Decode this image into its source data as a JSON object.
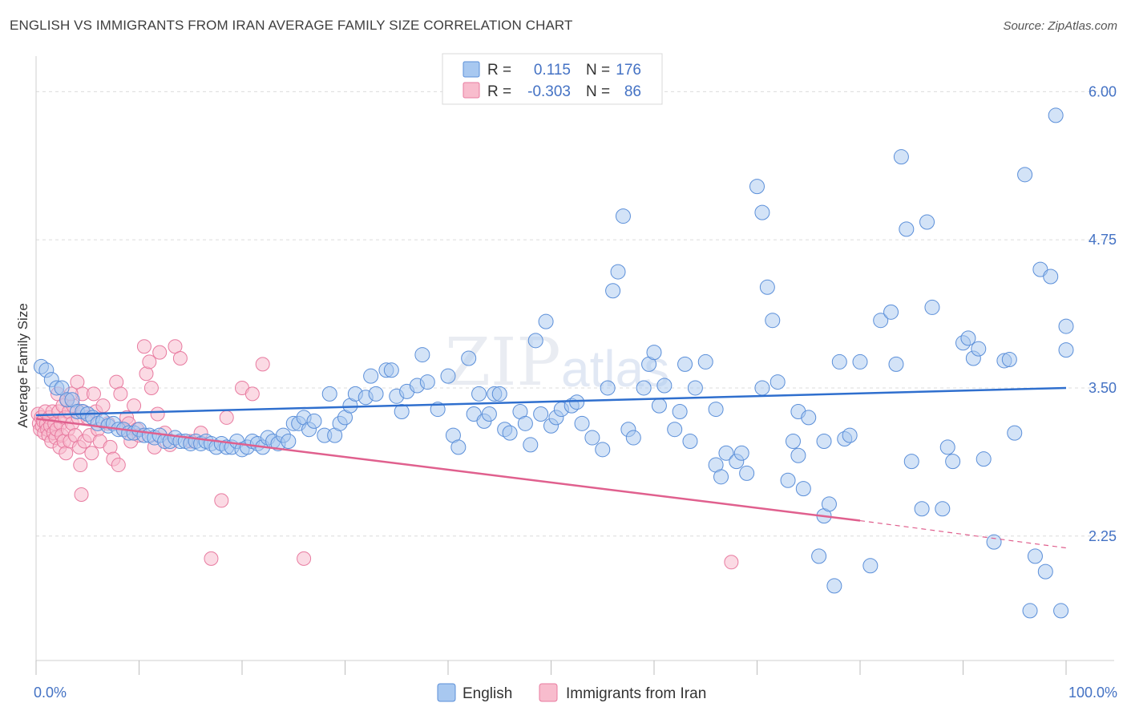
{
  "title": "ENGLISH VS IMMIGRANTS FROM IRAN AVERAGE FAMILY SIZE CORRELATION CHART",
  "source": "Source: ZipAtlas.com",
  "watermark": {
    "zip": "ZIP",
    "atlas": "atlas"
  },
  "legend_box": {
    "rows": [
      {
        "r_label": "R =",
        "r_value": "0.115",
        "n_label": "N =",
        "n_value": "176",
        "color": "#a8c8f0",
        "stroke": "#5b8fd9"
      },
      {
        "r_label": "R =",
        "r_value": "-0.303",
        "n_label": "N =",
        "n_value": "86",
        "color": "#f8bccd",
        "stroke": "#e87ba0"
      }
    ]
  },
  "bottom_legend": {
    "english": "English",
    "iran": "Immigrants from Iran"
  },
  "chart_data": {
    "type": "scatter",
    "title": "ENGLISH VS IMMIGRANTS FROM IRAN AVERAGE FAMILY SIZE CORRELATION CHART",
    "xlabel": "",
    "ylabel": "Average Family Size",
    "xlim": [
      0,
      100
    ],
    "ylim": [
      1.2,
      6.3
    ],
    "x_tick_labels": [
      "0.0%",
      "100.0%"
    ],
    "y_ticks": [
      2.25,
      3.5,
      4.75,
      6.0
    ],
    "y_tick_labels": [
      "2.25",
      "3.50",
      "4.75",
      "6.00"
    ],
    "grid": true,
    "colors": {
      "english_fill": "#a8c8f0",
      "english_stroke": "#5b8fd9",
      "english_line": "#2f6fce",
      "iran_fill": "#f8bccd",
      "iran_stroke": "#e87ba0",
      "iran_line": "#e0608e"
    },
    "series": [
      {
        "name": "English",
        "trend": {
          "x": [
            0,
            100
          ],
          "y": [
            3.27,
            3.5
          ]
        },
        "points": [
          [
            0.5,
            3.68
          ],
          [
            1,
            3.65
          ],
          [
            1.5,
            3.57
          ],
          [
            2,
            3.5
          ],
          [
            2.5,
            3.5
          ],
          [
            3,
            3.4
          ],
          [
            3.5,
            3.4
          ],
          [
            4,
            3.3
          ],
          [
            4.5,
            3.3
          ],
          [
            5,
            3.28
          ],
          [
            5.5,
            3.25
          ],
          [
            6,
            3.2
          ],
          [
            6.5,
            3.22
          ],
          [
            7,
            3.18
          ],
          [
            7.5,
            3.2
          ],
          [
            8,
            3.15
          ],
          [
            8.5,
            3.15
          ],
          [
            9,
            3.12
          ],
          [
            9.5,
            3.12
          ],
          [
            10,
            3.15
          ],
          [
            10.5,
            3.1
          ],
          [
            11,
            3.1
          ],
          [
            11.5,
            3.08
          ],
          [
            12,
            3.1
          ],
          [
            12.5,
            3.05
          ],
          [
            13,
            3.05
          ],
          [
            13.5,
            3.08
          ],
          [
            14,
            3.05
          ],
          [
            14.5,
            3.05
          ],
          [
            15,
            3.03
          ],
          [
            15.5,
            3.05
          ],
          [
            16,
            3.03
          ],
          [
            16.5,
            3.05
          ],
          [
            17,
            3.03
          ],
          [
            17.5,
            3.0
          ],
          [
            18,
            3.03
          ],
          [
            18.5,
            3.0
          ],
          [
            19,
            3.0
          ],
          [
            19.5,
            3.05
          ],
          [
            20,
            2.98
          ],
          [
            20.5,
            3.0
          ],
          [
            21,
            3.05
          ],
          [
            21.5,
            3.03
          ],
          [
            22,
            3.0
          ],
          [
            22.5,
            3.08
          ],
          [
            23,
            3.05
          ],
          [
            23.5,
            3.03
          ],
          [
            24,
            3.1
          ],
          [
            24.5,
            3.05
          ],
          [
            25,
            3.2
          ],
          [
            25.5,
            3.2
          ],
          [
            26,
            3.25
          ],
          [
            26.5,
            3.15
          ],
          [
            27,
            3.22
          ],
          [
            28,
            3.1
          ],
          [
            28.5,
            3.45
          ],
          [
            29,
            3.1
          ],
          [
            29.5,
            3.2
          ],
          [
            30,
            3.25
          ],
          [
            30.5,
            3.35
          ],
          [
            31,
            3.45
          ],
          [
            32,
            3.42
          ],
          [
            32.5,
            3.6
          ],
          [
            33,
            3.45
          ],
          [
            34,
            3.65
          ],
          [
            34.5,
            3.65
          ],
          [
            35,
            3.43
          ],
          [
            35.5,
            3.3
          ],
          [
            36,
            3.47
          ],
          [
            37,
            3.52
          ],
          [
            37.5,
            3.78
          ],
          [
            38,
            3.55
          ],
          [
            39,
            3.32
          ],
          [
            40,
            3.6
          ],
          [
            40.5,
            3.1
          ],
          [
            41,
            3.0
          ],
          [
            42,
            3.75
          ],
          [
            42.5,
            3.28
          ],
          [
            43,
            3.45
          ],
          [
            43.5,
            3.22
          ],
          [
            44,
            3.28
          ],
          [
            44.5,
            3.45
          ],
          [
            45,
            3.45
          ],
          [
            45.5,
            3.15
          ],
          [
            46,
            3.12
          ],
          [
            47,
            3.3
          ],
          [
            47.5,
            3.2
          ],
          [
            48,
            3.02
          ],
          [
            48.5,
            3.9
          ],
          [
            49,
            3.28
          ],
          [
            49.5,
            4.06
          ],
          [
            50,
            3.18
          ],
          [
            50.5,
            3.25
          ],
          [
            51,
            3.32
          ],
          [
            52,
            3.35
          ],
          [
            52.5,
            3.38
          ],
          [
            53,
            3.2
          ],
          [
            54,
            3.08
          ],
          [
            55,
            2.98
          ],
          [
            55.5,
            3.5
          ],
          [
            56,
            4.32
          ],
          [
            56.5,
            4.48
          ],
          [
            57,
            4.95
          ],
          [
            57.5,
            3.15
          ],
          [
            58,
            3.08
          ],
          [
            59,
            3.5
          ],
          [
            59.5,
            3.7
          ],
          [
            60,
            3.8
          ],
          [
            60.5,
            3.35
          ],
          [
            61,
            3.52
          ],
          [
            62,
            3.15
          ],
          [
            62.5,
            3.3
          ],
          [
            63,
            3.7
          ],
          [
            63.5,
            3.05
          ],
          [
            64,
            3.5
          ],
          [
            65,
            3.72
          ],
          [
            66,
            3.32
          ],
          [
            66,
            2.85
          ],
          [
            66.5,
            2.75
          ],
          [
            67,
            2.95
          ],
          [
            68,
            2.88
          ],
          [
            68.5,
            2.95
          ],
          [
            69,
            2.78
          ],
          [
            70,
            5.2
          ],
          [
            70.5,
            4.98
          ],
          [
            70.5,
            3.5
          ],
          [
            71,
            4.35
          ],
          [
            71.5,
            4.07
          ],
          [
            72,
            3.55
          ],
          [
            73,
            2.72
          ],
          [
            73.5,
            3.05
          ],
          [
            74,
            3.3
          ],
          [
            74,
            2.93
          ],
          [
            74.5,
            2.65
          ],
          [
            75,
            3.25
          ],
          [
            76,
            2.08
          ],
          [
            76.5,
            2.42
          ],
          [
            76.5,
            3.05
          ],
          [
            77,
            2.52
          ],
          [
            77.5,
            1.83
          ],
          [
            78,
            3.72
          ],
          [
            78.5,
            3.07
          ],
          [
            79,
            3.1
          ],
          [
            80,
            3.72
          ],
          [
            81,
            2.0
          ],
          [
            82,
            4.07
          ],
          [
            83,
            4.14
          ],
          [
            83.5,
            3.7
          ],
          [
            84,
            5.45
          ],
          [
            84.5,
            4.84
          ],
          [
            85,
            2.88
          ],
          [
            86,
            2.48
          ],
          [
            86.5,
            4.9
          ],
          [
            87,
            4.18
          ],
          [
            88,
            2.48
          ],
          [
            88.5,
            3.0
          ],
          [
            89,
            2.88
          ],
          [
            90,
            3.88
          ],
          [
            90.5,
            3.92
          ],
          [
            91,
            3.75
          ],
          [
            91.5,
            3.83
          ],
          [
            92,
            2.9
          ],
          [
            93,
            2.2
          ],
          [
            94,
            3.73
          ],
          [
            94.5,
            3.74
          ],
          [
            95,
            3.12
          ],
          [
            96,
            5.3
          ],
          [
            96.5,
            1.62
          ],
          [
            97,
            2.08
          ],
          [
            98,
            1.95
          ],
          [
            99,
            5.8
          ],
          [
            100,
            4.02
          ],
          [
            100,
            3.82
          ],
          [
            97.5,
            4.5
          ],
          [
            98.5,
            4.44
          ],
          [
            99.5,
            1.62
          ]
        ]
      },
      {
        "name": "Immigrants from Iran",
        "trend_solid": {
          "x": [
            0,
            80
          ],
          "y": [
            3.24,
            2.38
          ]
        },
        "trend_dashed": {
          "x": [
            80,
            100
          ],
          "y": [
            2.38,
            2.15
          ]
        },
        "points": [
          [
            0.2,
            3.28
          ],
          [
            0.3,
            3.2
          ],
          [
            0.4,
            3.15
          ],
          [
            0.5,
            3.25
          ],
          [
            0.6,
            3.18
          ],
          [
            0.7,
            3.22
          ],
          [
            0.8,
            3.12
          ],
          [
            0.9,
            3.3
          ],
          [
            1,
            3.2
          ],
          [
            1.1,
            3.15
          ],
          [
            1.2,
            3.1
          ],
          [
            1.3,
            3.25
          ],
          [
            1.4,
            3.18
          ],
          [
            1.5,
            3.05
          ],
          [
            1.6,
            3.3
          ],
          [
            1.7,
            3.12
          ],
          [
            1.8,
            3.2
          ],
          [
            1.9,
            3.08
          ],
          [
            2,
            3.15
          ],
          [
            2.1,
            3.45
          ],
          [
            2.2,
            3.3
          ],
          [
            2.3,
            3.0
          ],
          [
            2.4,
            3.2
          ],
          [
            2.5,
            3.1
          ],
          [
            2.6,
            3.35
          ],
          [
            2.7,
            3.05
          ],
          [
            2.8,
            3.25
          ],
          [
            2.9,
            2.95
          ],
          [
            3,
            3.4
          ],
          [
            3.1,
            3.15
          ],
          [
            3.2,
            3.3
          ],
          [
            3.3,
            3.05
          ],
          [
            3.5,
            3.2
          ],
          [
            3.6,
            3.35
          ],
          [
            3.8,
            3.1
          ],
          [
            4,
            3.55
          ],
          [
            4.1,
            3.25
          ],
          [
            4.2,
            3.0
          ],
          [
            4.3,
            2.85
          ],
          [
            4.4,
            2.6
          ],
          [
            4.5,
            3.45
          ],
          [
            4.6,
            3.3
          ],
          [
            4.7,
            3.05
          ],
          [
            5,
            3.25
          ],
          [
            5.2,
            3.1
          ],
          [
            5.4,
            2.95
          ],
          [
            5.6,
            3.45
          ],
          [
            5.8,
            3.3
          ],
          [
            6,
            3.15
          ],
          [
            6.2,
            3.05
          ],
          [
            6.5,
            3.35
          ],
          [
            7,
            3.2
          ],
          [
            7.2,
            3.0
          ],
          [
            7.5,
            2.9
          ],
          [
            7.8,
            3.55
          ],
          [
            8,
            2.85
          ],
          [
            8.2,
            3.45
          ],
          [
            8.5,
            3.15
          ],
          [
            8.8,
            3.25
          ],
          [
            9,
            3.2
          ],
          [
            9.2,
            3.05
          ],
          [
            9.5,
            3.35
          ],
          [
            9.8,
            3.15
          ],
          [
            10,
            3.1
          ],
          [
            10.5,
            3.85
          ],
          [
            10.7,
            3.62
          ],
          [
            11,
            3.72
          ],
          [
            11.2,
            3.5
          ],
          [
            11.5,
            3.0
          ],
          [
            11.8,
            3.28
          ],
          [
            12,
            3.8
          ],
          [
            12.5,
            3.12
          ],
          [
            13,
            3.02
          ],
          [
            13.5,
            3.85
          ],
          [
            14,
            3.75
          ],
          [
            15,
            3.05
          ],
          [
            16,
            3.12
          ],
          [
            17,
            2.06
          ],
          [
            18,
            2.55
          ],
          [
            18.5,
            3.25
          ],
          [
            20,
            3.5
          ],
          [
            21,
            3.45
          ],
          [
            22,
            3.7
          ],
          [
            26,
            2.06
          ],
          [
            67.5,
            2.03
          ],
          [
            3.4,
            3.45
          ]
        ]
      }
    ]
  }
}
